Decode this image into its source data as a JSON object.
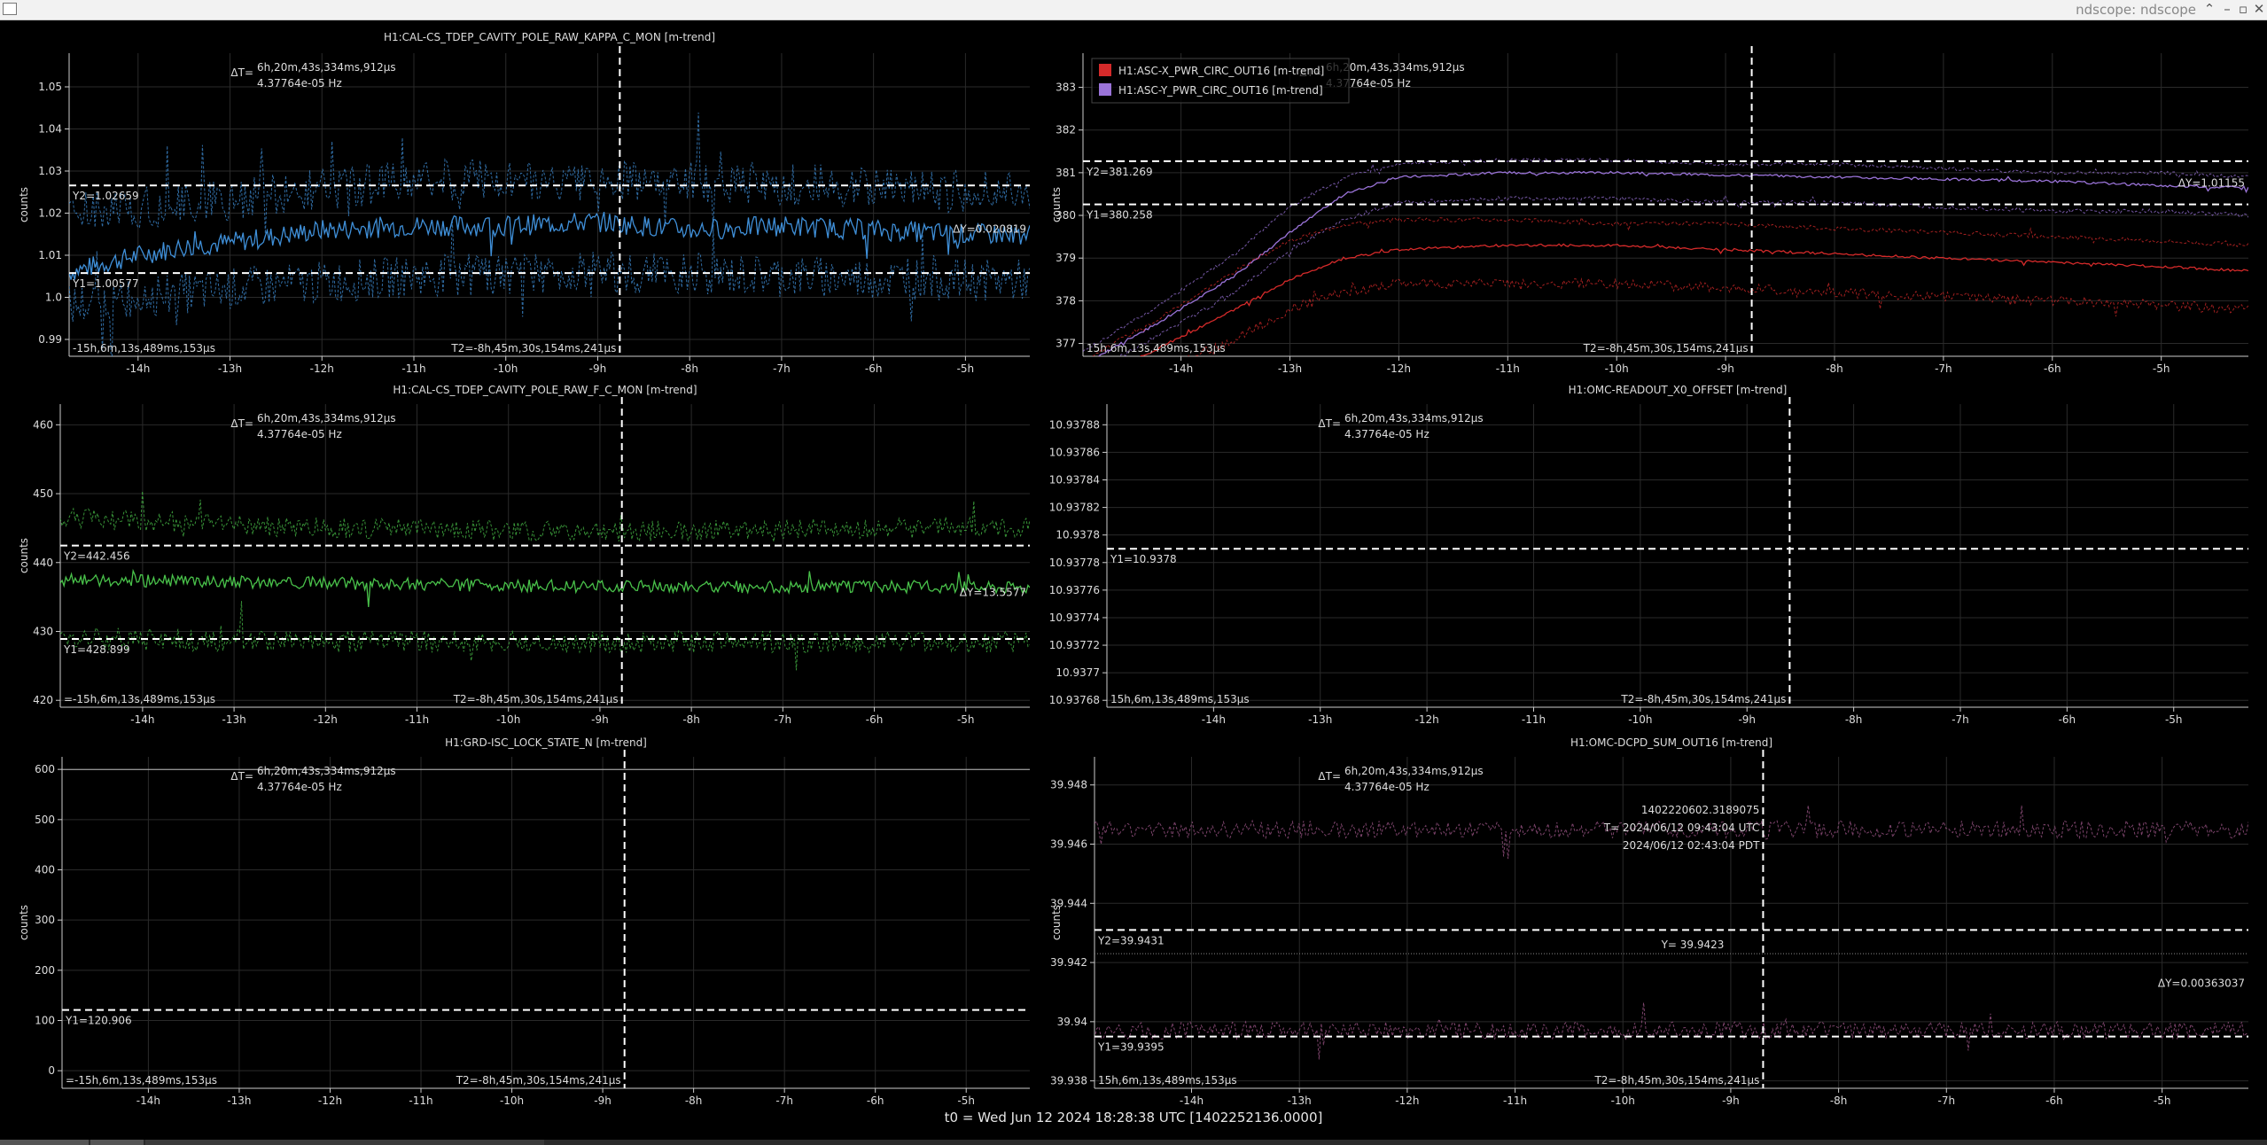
{
  "window": {
    "title": "ndscope: ndscope"
  },
  "footer": {
    "t0_text": "t0 = Wed Jun 12 2024 18:28:38 UTC [1402252136.0000]"
  },
  "axis": {
    "ylabel": "counts",
    "x_ticks": [
      "-14h",
      "-13h",
      "-12h",
      "-11h",
      "-10h",
      "-9h",
      "-8h",
      "-7h",
      "-6h",
      "-5h"
    ],
    "x_tick_values": [
      -14,
      -13,
      -12,
      -11,
      -10,
      -9,
      -8,
      -7,
      -6,
      -5
    ]
  },
  "colors": {
    "background": "#000000",
    "grid": "#2a2a2a",
    "axis": "#cccccc",
    "text": "#dddddd",
    "cursor": "#ffffff",
    "blue": "#3f8fd8",
    "green": "#49c24a",
    "red": "#d42a2a",
    "purple": "#9a73d8",
    "pink": "#a45a8e"
  },
  "cursor_labels": {
    "dt_label": "ΔT=",
    "dt_value": "6h,20m,43s,334ms,912μs",
    "dt_freq": "4.37764e-05 Hz",
    "t2": "T2=-8h,45m,30s,154ms,241μs"
  },
  "panels": [
    {
      "id": "kappa",
      "title": "H1:CAL-CS_TDEP_CAVITY_POLE_RAW_KAPPA_C_MON [m-trend]",
      "t1": "-15h,6m,13s,489ms,153μs",
      "y2_label": "Y2=1.02659",
      "y1_label": "Y1=1.00577",
      "dy_label": "ΔY=0.020819",
      "legend": []
    },
    {
      "id": "asc",
      "title": "",
      "t1": "15h,6m,13s,489ms,153μs",
      "y2_label": "Y2=381.269",
      "y1_label": "Y1=380.258",
      "dy_label": "ΔY=1.01155",
      "legend": [
        {
          "name": "H1:ASC-X_PWR_CIRC_OUT16 [m-trend]",
          "color": "#d42a2a"
        },
        {
          "name": "H1:ASC-Y_PWR_CIRC_OUT16 [m-trend]",
          "color": "#9a73d8"
        }
      ]
    },
    {
      "id": "fc",
      "title": "H1:CAL-CS_TDEP_CAVITY_POLE_RAW_F_C_MON [m-trend]",
      "t1": "=-15h,6m,13s,489ms,153μs",
      "y2_label": "Y2=442.456",
      "y1_label": "Y1=428.899",
      "dy_label": "ΔY=13.5577",
      "legend": []
    },
    {
      "id": "omcx",
      "title": "H1:OMC-READOUT_X0_OFFSET [m-trend]",
      "t1": "15h,6m,13s,489ms,153μs",
      "y2_label": "",
      "y1_label": "Y1=10.9378",
      "dy_label": "",
      "legend": []
    },
    {
      "id": "grd",
      "title": "H1:GRD-ISC_LOCK_STATE_N [m-trend]",
      "t1": "=-15h,6m,13s,489ms,153μs",
      "y2_label": "",
      "y1_label": "Y1=120.906",
      "dy_label": "",
      "legend": []
    },
    {
      "id": "dcpd",
      "title": "H1:OMC-DCPD_SUM_OUT16 [m-trend]",
      "t1": "15h,6m,13s,489ms,153μs",
      "y2_label": "Y2=39.9431",
      "y1_label": "Y1=39.9395",
      "dy_label": "ΔY=0.00363037",
      "legend": [],
      "crosshair": {
        "gps": "1402220602.3189075",
        "utc": "T= 2024/06/12 09:43:04 UTC",
        "pdt": "2024/06/12 02:43:04 PDT",
        "y": "Y= 39.9423"
      }
    }
  ],
  "chart_data": [
    {
      "type": "line",
      "title": "H1:CAL-CS_TDEP_CAVITY_POLE_RAW_KAPPA_C_MON [m-trend]",
      "ylabel": "counts",
      "xlim": [
        -14.75,
        -4.3
      ],
      "ylim": [
        0.986,
        1.058
      ],
      "y_ticks": [
        "0.99",
        "1.0",
        "1.01",
        "1.02",
        "1.03",
        "1.04",
        "1.05"
      ],
      "y_tick_values": [
        0.99,
        1.0,
        1.01,
        1.02,
        1.03,
        1.04,
        1.05
      ],
      "series": [
        {
          "color": "#3f8fd8",
          "style": "mean",
          "x": [
            -14.75,
            -14,
            -13.5,
            -13,
            -12,
            -11,
            -10,
            -9,
            -8,
            -7,
            -6,
            -5,
            -4.3
          ],
          "y": [
            1.006,
            1.01,
            1.012,
            1.013,
            1.016,
            1.017,
            1.017,
            1.018,
            1.016,
            1.017,
            1.016,
            1.015,
            1.015
          ],
          "noise": 0.0025
        },
        {
          "color": "#3f8fd8",
          "style": "max",
          "x": [
            -14.75,
            -13,
            -11,
            -9,
            -7,
            -5,
            -4.3
          ],
          "y": [
            1.02,
            1.023,
            1.028,
            1.028,
            1.027,
            1.025,
            1.025
          ],
          "noise": 0.005
        },
        {
          "color": "#3f8fd8",
          "style": "min",
          "x": [
            -14.75,
            -13,
            -11,
            -9,
            -7,
            -5,
            -4.3
          ],
          "y": [
            0.998,
            1.002,
            1.005,
            1.006,
            1.005,
            1.004,
            1.004
          ],
          "noise": 0.005
        }
      ],
      "cursors": {
        "y2": 1.02659,
        "y1": 1.00577,
        "t2": -8.76
      }
    },
    {
      "type": "line",
      "title": "",
      "ylabel": "counts",
      "xlim": [
        -14.9,
        -4.2
      ],
      "ylim": [
        376.7,
        383.8
      ],
      "y_ticks": [
        "377",
        "378",
        "379",
        "380",
        "381",
        "382",
        "383"
      ],
      "y_tick_values": [
        377,
        378,
        379,
        380,
        381,
        382,
        383
      ],
      "series": [
        {
          "name": "H1:ASC-Y_PWR_CIRC_OUT16 [m-trend]",
          "color": "#9a73d8",
          "style": "mean",
          "x": [
            -14.9,
            -14.2,
            -13.5,
            -13,
            -12.5,
            -12,
            -11,
            -10,
            -9,
            -8,
            -7,
            -6,
            -5,
            -4.2
          ],
          "y": [
            376.5,
            377.5,
            378.6,
            379.6,
            380.5,
            380.9,
            381.0,
            381.0,
            380.95,
            380.9,
            380.85,
            380.8,
            380.7,
            380.65
          ],
          "noise": 0.03
        },
        {
          "name": "",
          "color": "#9a73d8",
          "style": "max",
          "x": [
            -14.9,
            -14.2,
            -13.5,
            -13,
            -12.5,
            -12,
            -11,
            -10,
            -9,
            -8,
            -7,
            -6,
            -5,
            -4.2
          ],
          "y": [
            376.8,
            377.9,
            379.1,
            380.2,
            380.9,
            381.2,
            381.3,
            381.3,
            381.2,
            381.2,
            381.1,
            381.0,
            381.0,
            380.9
          ],
          "noise": 0.04
        },
        {
          "name": "",
          "color": "#9a73d8",
          "style": "min",
          "x": [
            -14.9,
            -14.2,
            -13.5,
            -13,
            -12.5,
            -12,
            -11,
            -10,
            -9,
            -8,
            -7,
            -6,
            -5,
            -4.2
          ],
          "y": [
            376.2,
            377.2,
            378.2,
            379.2,
            379.9,
            380.3,
            380.4,
            380.4,
            380.3,
            380.3,
            380.2,
            380.1,
            380.1,
            380.0
          ],
          "noise": 0.05
        },
        {
          "name": "H1:ASC-X_PWR_CIRC_OUT16 [m-trend]",
          "color": "#d42a2a",
          "style": "mean",
          "x": [
            -14.9,
            -14.2,
            -13.5,
            -13,
            -12.5,
            -12,
            -11,
            -10,
            -9,
            -8,
            -7,
            -6,
            -5,
            -4.2
          ],
          "y": [
            376.0,
            376.9,
            377.8,
            378.5,
            379.0,
            379.2,
            379.3,
            379.3,
            379.2,
            379.1,
            379.0,
            378.9,
            378.8,
            378.7
          ],
          "noise": 0.03
        },
        {
          "name": "",
          "color": "#d42a2a",
          "style": "max",
          "x": [
            -14.9,
            -14.2,
            -13.5,
            -13,
            -12.5,
            -12,
            -11,
            -10,
            -9,
            -8,
            -7,
            -6,
            -5,
            -4.2
          ],
          "y": [
            376.6,
            377.6,
            378.7,
            379.4,
            379.8,
            379.9,
            379.9,
            379.8,
            379.8,
            379.7,
            379.6,
            379.5,
            379.4,
            379.3
          ],
          "noise": 0.05
        },
        {
          "name": "",
          "color": "#d42a2a",
          "style": "min",
          "x": [
            -14.9,
            -14.2,
            -13.5,
            -13,
            -12.5,
            -12,
            -11,
            -10,
            -9,
            -8,
            -7,
            -6,
            -5,
            -4.2
          ],
          "y": [
            375.5,
            376.3,
            377.1,
            377.8,
            378.2,
            378.4,
            378.4,
            378.4,
            378.3,
            378.2,
            378.1,
            378.0,
            377.9,
            377.8
          ],
          "noise": 0.12
        }
      ],
      "cursors": {
        "y2": 381.269,
        "y1": 380.258,
        "t2": -8.76
      }
    },
    {
      "type": "line",
      "title": "H1:CAL-CS_TDEP_CAVITY_POLE_RAW_F_C_MON [m-trend]",
      "ylabel": "counts",
      "xlim": [
        -14.9,
        -4.3
      ],
      "ylim": [
        419,
        463
      ],
      "y_ticks": [
        "420",
        "430",
        "440",
        "450",
        "460"
      ],
      "y_tick_values": [
        420,
        430,
        440,
        450,
        460
      ],
      "series": [
        {
          "color": "#49c24a",
          "style": "mean",
          "x": [
            -14.9,
            -12,
            -9,
            -6,
            -4.3
          ],
          "y": [
            437.5,
            437.0,
            436.5,
            436.5,
            436.5
          ],
          "noise": 0.9
        },
        {
          "color": "#49c24a",
          "style": "max",
          "x": [
            -14.9,
            -12,
            -9,
            -6,
            -4.3
          ],
          "y": [
            446.5,
            445.0,
            444.5,
            445.0,
            445.0
          ],
          "noise": 1.5
        },
        {
          "color": "#49c24a",
          "style": "min",
          "x": [
            -14.9,
            -12,
            -9,
            -6,
            -4.3
          ],
          "y": [
            429.0,
            428.5,
            428.5,
            428.5,
            428.5
          ],
          "noise": 1.6
        }
      ],
      "cursors": {
        "y2": 442.456,
        "y1": 428.899,
        "t2": -8.76
      }
    },
    {
      "type": "line",
      "title": "H1:OMC-READOUT_X0_OFFSET [m-trend]",
      "ylabel": "",
      "xlim": [
        -15.0,
        -4.3
      ],
      "ylim": [
        10.937675,
        10.937895
      ],
      "y_ticks": [
        "10.93768",
        "10.9377",
        "10.93772",
        "10.93774",
        "10.93776",
        "10.93778",
        "10.9378",
        "10.93782",
        "10.93784",
        "10.93786",
        "10.93788"
      ],
      "y_tick_values": [
        10.93768,
        10.9377,
        10.93772,
        10.93774,
        10.93776,
        10.93778,
        10.9378,
        10.93782,
        10.93784,
        10.93786,
        10.93788
      ],
      "series": [],
      "cursors": {
        "y1": 10.93779,
        "t2": -8.6
      }
    },
    {
      "type": "line",
      "title": "H1:GRD-ISC_LOCK_STATE_N [m-trend]",
      "ylabel": "counts",
      "xlim": [
        -14.95,
        -4.3
      ],
      "ylim": [
        -35,
        625
      ],
      "y_ticks": [
        "0",
        "100",
        "200",
        "300",
        "400",
        "500",
        "600"
      ],
      "y_tick_values": [
        0,
        100,
        200,
        300,
        400,
        500,
        600
      ],
      "series": [
        {
          "color": "#bbbbbb",
          "style": "flat",
          "x": [
            -14.95,
            -4.3
          ],
          "y": [
            600,
            600
          ],
          "noise": 0
        }
      ],
      "cursors": {
        "y1": 120.906,
        "t2": -8.76
      }
    },
    {
      "type": "line",
      "title": "H1:OMC-DCPD_SUM_OUT16 [m-trend]",
      "ylabel": "counts",
      "xlim": [
        -14.9,
        -4.2
      ],
      "ylim": [
        39.93775,
        39.94895
      ],
      "y_ticks": [
        "39.938",
        "39.94",
        "39.942",
        "39.944",
        "39.946",
        "39.948"
      ],
      "y_tick_values": [
        39.938,
        39.94,
        39.942,
        39.944,
        39.946,
        39.948
      ],
      "series": [
        {
          "color": "#a45a8e",
          "style": "max",
          "x": [
            -14.9,
            -9,
            -4.2
          ],
          "y": [
            39.9465,
            39.9465,
            39.9465
          ],
          "noise": 0.0003
        },
        {
          "color": "#a45a8e",
          "style": "min",
          "x": [
            -14.9,
            -9,
            -4.2
          ],
          "y": [
            39.9397,
            39.9397,
            39.9397
          ],
          "noise": 0.0003
        },
        {
          "color": "#a45a8e",
          "style": "mean-dotted",
          "x": [
            -14.9,
            -4.2
          ],
          "y": [
            39.9423,
            39.9423
          ],
          "noise": 0
        }
      ],
      "cursors": {
        "y2": 39.9431,
        "y1": 39.9395,
        "t2": -8.7,
        "ycross": 39.9423
      }
    }
  ]
}
